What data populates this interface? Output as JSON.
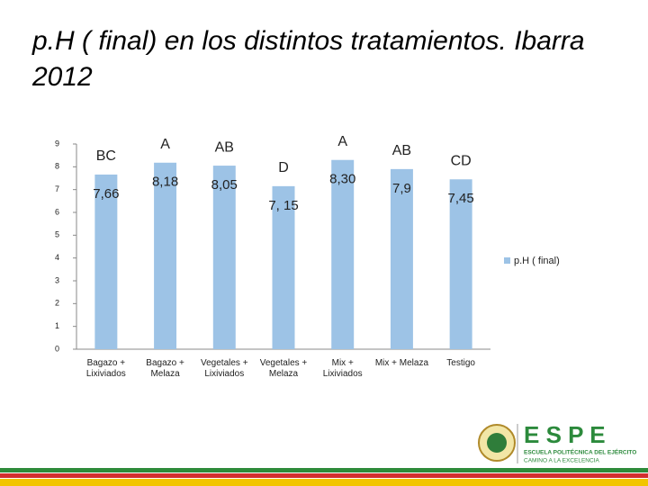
{
  "chart_data": {
    "type": "bar",
    "title": "p.H ( final) en los distintos tratamientos. Ibarra 2012",
    "categories": [
      "Bagazo + Lixiviados",
      "Bagazo + Melaza",
      "Vegetales + Lixiviados",
      "Vegetales + Melaza",
      "Mix + Lixiviados",
      "Mix + Melaza",
      "Testigo"
    ],
    "series": [
      {
        "name": "p.H ( final)",
        "color": "#9dc3e6",
        "values": [
          7.66,
          8.18,
          8.05,
          7.15,
          8.3,
          7.9,
          7.45
        ],
        "value_labels": [
          "7,66",
          "8,18",
          "8,05",
          "7, 15",
          "8,30",
          "7,9",
          "7,45"
        ]
      }
    ],
    "annotations": [
      "BC",
      "A",
      "AB",
      "D",
      "A",
      "AB",
      "CD"
    ],
    "ylim": [
      0,
      9
    ],
    "yticks": [
      0,
      1,
      2,
      3,
      4,
      5,
      6,
      7,
      8,
      9
    ],
    "legend": "right"
  },
  "logo": {
    "name": "E S P E",
    "school": "ESCUELA POLITÉCNICA DEL EJÉRCITO",
    "motto": "CAMINO A LA EXCELENCIA"
  }
}
